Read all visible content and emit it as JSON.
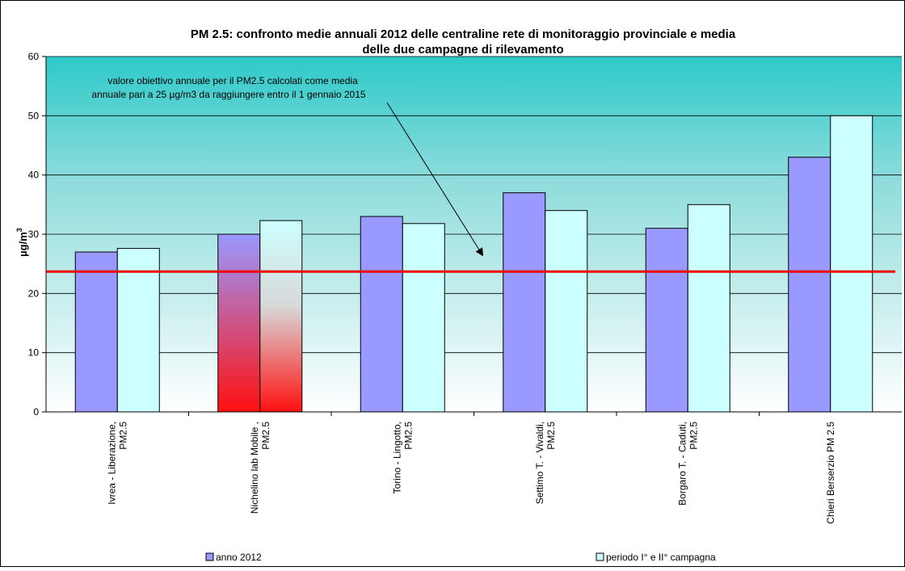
{
  "chart_data": {
    "type": "bar",
    "title_lines": [
      "PM 2.5: confronto medie annuali 2012 delle centraline rete di monitoraggio provinciale e media",
      "delle due campagne di rilevamento"
    ],
    "ylabel": "µg/m",
    "ylabel_sup": "3",
    "xlabel": "",
    "ylim": [
      0,
      60
    ],
    "yticks": [
      0,
      10,
      20,
      30,
      40,
      50,
      60
    ],
    "grid": true,
    "categories": [
      [
        "Ivrea - Liberazione,",
        "PM2.5"
      ],
      [
        "Nichelino lab  Mobile ,",
        "PM2.5"
      ],
      [
        "Torino - Lingotto,",
        "PM2.5"
      ],
      [
        "Settimo T. - Vivaldi,",
        "PM2.5"
      ],
      [
        "Borgaro T. - Caduti,",
        "PM2.5"
      ],
      [
        "Chieri Berserzio PM 2.5"
      ]
    ],
    "series": [
      {
        "name": "anno 2012",
        "color": "#9999ff",
        "values": [
          27,
          30,
          33,
          37,
          31,
          43
        ]
      },
      {
        "name": "periodo I° e II° campagna",
        "color": "#ccffff",
        "values": [
          27.6,
          32.3,
          31.8,
          34,
          35,
          50
        ]
      }
    ],
    "highlight": {
      "category_index": 1,
      "gradient_top": "#9999ff",
      "gradient_bottom": "#ff0000"
    },
    "reference_line": {
      "value": 23.7,
      "color": "#ee0000"
    },
    "annotation": {
      "lines": [
        "valore obiettivo annuale per il PM2.5  calcolati come media",
        "annuale pari a 25 µg/m3 da raggiungere entro il 1 gennaio 2015"
      ],
      "arrow_to_value": 26.5
    },
    "legend_position": "bottom"
  }
}
